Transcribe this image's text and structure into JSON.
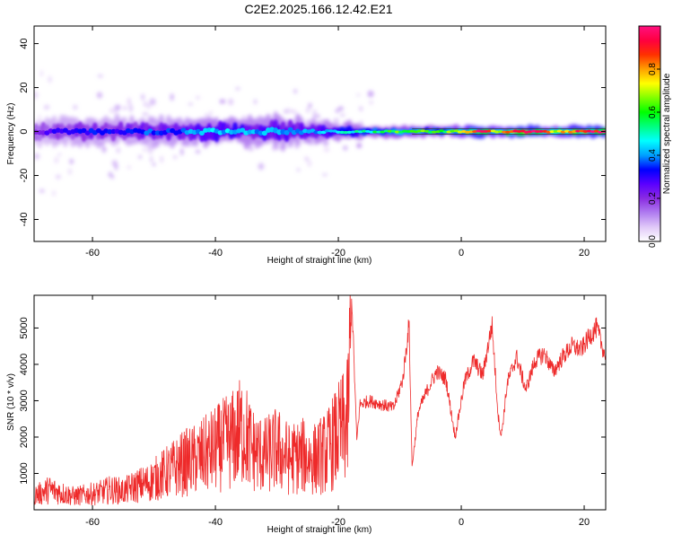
{
  "title": "C2E2.2025.166.12.42.E21",
  "chart_data": [
    {
      "type": "heatmap",
      "xlabel": "Height of straight line (km)",
      "ylabel": "Frequency (Hz)",
      "xlim": [
        -69.5,
        23.5
      ],
      "ylim": [
        -50,
        48
      ],
      "xticks": [
        -60,
        -40,
        -20,
        0,
        20
      ],
      "yticks": [
        -40,
        -20,
        0,
        20,
        40
      ],
      "colorbar": {
        "label": "Normalized spectral amplitude",
        "range": [
          0,
          1
        ],
        "ticks": [
          0.0,
          0.2,
          0.4,
          0.6,
          0.8
        ],
        "colormap": [
          "#ffffff",
          "#e0c8f8",
          "#b07cf0",
          "#8a2be2",
          "#5a00ff",
          "#0000ff",
          "#00a0ff",
          "#00ffff",
          "#00ff80",
          "#00ff00",
          "#80ff00",
          "#ffff00",
          "#ffa000",
          "#ff3000",
          "#ff0040",
          "#ff1080"
        ]
      },
      "ridge": [
        {
          "x": -69,
          "amp": 0.22,
          "spread": 5
        },
        {
          "x": -66,
          "amp": 0.28,
          "spread": 5
        },
        {
          "x": -63,
          "amp": 0.3,
          "spread": 5
        },
        {
          "x": -60,
          "amp": 0.32,
          "spread": 5
        },
        {
          "x": -57,
          "amp": 0.3,
          "spread": 5
        },
        {
          "x": -54,
          "amp": 0.32,
          "spread": 5
        },
        {
          "x": -51,
          "amp": 0.34,
          "spread": 5
        },
        {
          "x": -48,
          "amp": 0.33,
          "spread": 5
        },
        {
          "x": -45,
          "amp": 0.36,
          "spread": 5
        },
        {
          "x": -42,
          "amp": 0.4,
          "spread": 5
        },
        {
          "x": -39,
          "amp": 0.42,
          "spread": 5
        },
        {
          "x": -36,
          "amp": 0.42,
          "spread": 5
        },
        {
          "x": -33,
          "amp": 0.38,
          "spread": 5
        },
        {
          "x": -30,
          "amp": 0.4,
          "spread": 6
        },
        {
          "x": -27,
          "amp": 0.38,
          "spread": 5
        },
        {
          "x": -24,
          "amp": 0.4,
          "spread": 4
        },
        {
          "x": -21,
          "amp": 0.44,
          "spread": 3
        },
        {
          "x": -18,
          "amp": 0.46,
          "spread": 3
        },
        {
          "x": -15,
          "amp": 0.5,
          "spread": 2
        },
        {
          "x": -12,
          "amp": 0.58,
          "spread": 2
        },
        {
          "x": -9,
          "amp": 0.62,
          "spread": 2
        },
        {
          "x": -6,
          "amp": 0.6,
          "spread": 2
        },
        {
          "x": -3,
          "amp": 0.58,
          "spread": 2
        },
        {
          "x": 0,
          "amp": 0.72,
          "spread": 2
        },
        {
          "x": 3,
          "amp": 0.92,
          "spread": 2
        },
        {
          "x": 6,
          "amp": 0.7,
          "spread": 2
        },
        {
          "x": 9,
          "amp": 0.92,
          "spread": 2
        },
        {
          "x": 12,
          "amp": 0.92,
          "spread": 2
        },
        {
          "x": 15,
          "amp": 0.7,
          "spread": 2
        },
        {
          "x": 18,
          "amp": 0.85,
          "spread": 2
        },
        {
          "x": 21,
          "amp": 0.9,
          "spread": 2
        },
        {
          "x": 23,
          "amp": 0.9,
          "spread": 2
        }
      ]
    },
    {
      "type": "line",
      "xlabel": "Height of straight line (km)",
      "ylabel": "SNR (10 * v/v)",
      "xlim": [
        -69.5,
        23.5
      ],
      "ylim": [
        0,
        5900
      ],
      "xticks": [
        -60,
        -40,
        -20,
        0,
        20
      ],
      "yticks": [
        1000,
        2000,
        3000,
        4000,
        5000
      ],
      "color": "#ee2a2a",
      "series": [
        {
          "x": [
            -69,
            -67,
            -65,
            -63,
            -61,
            -59,
            -57,
            -55,
            -53,
            -51,
            -49,
            -47,
            -45,
            -43,
            -41,
            -39,
            -37,
            -35.5,
            -34,
            -32,
            -30,
            -28,
            -26,
            -24,
            -22,
            -20,
            -18.5,
            -17.8,
            -17.0,
            -16.5,
            -15,
            -13,
            -11,
            -9.5,
            -8.5,
            -8,
            -7,
            -5.5,
            -4,
            -2.5,
            -1,
            0.5,
            2,
            3.5,
            5,
            6,
            6.5,
            7.5,
            9,
            10.5,
            12,
            13.5,
            15,
            16.5,
            18,
            19.5,
            21,
            22,
            23.5
          ],
          "y": [
            450,
            600,
            500,
            400,
            450,
            500,
            600,
            550,
            700,
            800,
            1000,
            1200,
            1400,
            1500,
            1700,
            1900,
            2100,
            2400,
            1800,
            1600,
            1800,
            1500,
            1600,
            1500,
            1700,
            2200,
            2600,
            5800,
            1900,
            2900,
            3000,
            2900,
            2800,
            3600,
            5100,
            1200,
            2700,
            3300,
            3800,
            3600,
            2000,
            3500,
            4100,
            3700,
            5100,
            2600,
            2000,
            3500,
            4200,
            3300,
            4100,
            4300,
            3800,
            4200,
            4500,
            4400,
            4800,
            5000,
            4200
          ]
        }
      ]
    }
  ]
}
